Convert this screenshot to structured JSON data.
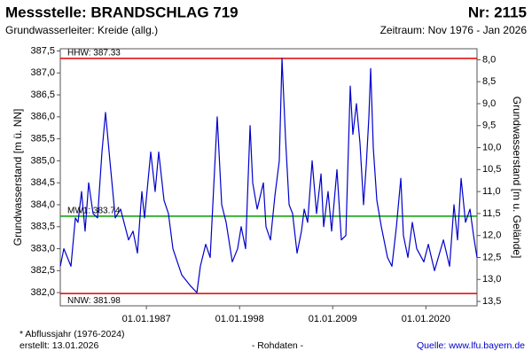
{
  "chart_data": {
    "type": "line",
    "title": "Messstelle: BRANDSCHLAG 719",
    "number": "Nr: 2115",
    "subtitle": "Grundwasserleiter: Kreide (allg.)",
    "period": "Zeitraum: Nov 1976 - Jan 2026",
    "ylabel": "Grundwasserstand [m ü. NN]",
    "y2label": "Grundwasserstand [m u. Gelände]",
    "footnote": "* Abflussjahr (1976-2024)",
    "created": "erstellt:  13.01.2026",
    "rawdata": "- Rohdaten -",
    "source": "Quelle: www.lfu.bayern.de",
    "xlim": [
      1976.83,
      2026.04
    ],
    "xticks": [
      {
        "value": 1987.0,
        "label": "01.01.1987"
      },
      {
        "value": 1998.0,
        "label": "01.01.1998"
      },
      {
        "value": 2009.0,
        "label": "01.01.2009"
      },
      {
        "value": 2020.0,
        "label": "01.01.2020"
      }
    ],
    "ylim": [
      381.7,
      387.55
    ],
    "yticks": [
      {
        "value": 382.0,
        "label": "382,0"
      },
      {
        "value": 382.5,
        "label": "382,5"
      },
      {
        "value": 383.0,
        "label": "383,0"
      },
      {
        "value": 383.5,
        "label": "383,5"
      },
      {
        "value": 384.0,
        "label": "384,0"
      },
      {
        "value": 384.5,
        "label": "384,5"
      },
      {
        "value": 385.0,
        "label": "385,0"
      },
      {
        "value": 385.5,
        "label": "385,5"
      },
      {
        "value": 386.0,
        "label": "386,0"
      },
      {
        "value": 386.5,
        "label": "386,5"
      },
      {
        "value": 387.0,
        "label": "387,0"
      },
      {
        "value": 387.5,
        "label": "387,5"
      }
    ],
    "y2lim": [
      13.6,
      7.75
    ],
    "y2ticks": [
      {
        "value": 8.0,
        "label": "8,0"
      },
      {
        "value": 8.5,
        "label": "8,5"
      },
      {
        "value": 9.0,
        "label": "9,0"
      },
      {
        "value": 9.5,
        "label": "9,5"
      },
      {
        "value": 10.0,
        "label": "10,0"
      },
      {
        "value": 10.5,
        "label": "10,5"
      },
      {
        "value": 11.0,
        "label": "11,0"
      },
      {
        "value": 11.5,
        "label": "11,5"
      },
      {
        "value": 12.0,
        "label": "12,0"
      },
      {
        "value": 12.5,
        "label": "12,5"
      },
      {
        "value": 13.0,
        "label": "13,0"
      },
      {
        "value": 13.5,
        "label": "13,5"
      }
    ],
    "reference_lines": [
      {
        "label": "HHW: 387.33",
        "value": 387.33,
        "color": "#e00000"
      },
      {
        "label": "MW1: 383.74",
        "value": 383.74,
        "color": "#00a000"
      },
      {
        "label": "NNW: 381.98",
        "value": 381.98,
        "color": "#e00000"
      }
    ],
    "series": [
      {
        "color": "#0000cc",
        "x": [
          1976.83,
          1977.25,
          1978.09,
          1978.61,
          1978.92,
          1979.34,
          1979.76,
          1980.18,
          1980.7,
          1981.23,
          1981.75,
          1982.17,
          1982.69,
          1983.32,
          1983.95,
          1984.89,
          1985.42,
          1985.94,
          1986.46,
          1986.78,
          1987.51,
          1988.03,
          1988.45,
          1989.08,
          1989.6,
          1990.13,
          1990.65,
          1991.18,
          1992.22,
          1992.96,
          1993.37,
          1994.0,
          1994.53,
          1995.36,
          1995.89,
          1996.41,
          1997.14,
          1997.77,
          1998.19,
          1998.71,
          1999.24,
          1999.55,
          2000.08,
          2000.81,
          2001.12,
          2001.65,
          2002.17,
          2002.69,
          2003.01,
          2003.43,
          2003.85,
          2004.26,
          2004.79,
          2005.31,
          2005.63,
          2006.04,
          2006.57,
          2007.09,
          2007.62,
          2007.93,
          2008.45,
          2008.87,
          2009.5,
          2010.02,
          2010.55,
          2011.07,
          2011.38,
          2011.8,
          2012.22,
          2012.64,
          2012.96,
          2013.27,
          2013.48,
          2013.79,
          2014.21,
          2014.74,
          2015.47,
          2015.99,
          2016.52,
          2017.04,
          2017.35,
          2017.88,
          2018.4,
          2018.92,
          2019.76,
          2020.29,
          2021.02,
          2022.07,
          2022.8,
          2023.32,
          2023.74,
          2024.16,
          2024.68,
          2025.21,
          2025.63,
          2026.04
        ],
        "values": [
          382.6,
          383.0,
          382.6,
          383.7,
          383.6,
          384.3,
          383.4,
          384.5,
          383.8,
          383.7,
          385.2,
          386.1,
          385.0,
          383.7,
          383.9,
          383.2,
          383.4,
          382.9,
          384.3,
          383.7,
          385.2,
          384.3,
          385.2,
          384.1,
          383.8,
          383.0,
          382.7,
          382.4,
          382.15,
          382.0,
          382.6,
          383.1,
          382.8,
          386.0,
          384.0,
          383.6,
          382.7,
          383.0,
          383.5,
          383.0,
          385.8,
          384.5,
          383.9,
          384.5,
          383.5,
          383.2,
          384.2,
          385.0,
          387.33,
          385.5,
          384.0,
          383.8,
          382.9,
          383.4,
          383.9,
          383.6,
          385.0,
          383.8,
          384.7,
          383.5,
          384.3,
          383.4,
          384.8,
          383.2,
          383.3,
          386.7,
          385.6,
          386.3,
          385.4,
          384.0,
          384.9,
          386.0,
          387.1,
          385.3,
          384.1,
          383.5,
          382.8,
          382.6,
          383.5,
          384.6,
          383.3,
          382.8,
          383.6,
          383.0,
          382.7,
          383.1,
          382.5,
          383.2,
          382.6,
          384.0,
          383.2,
          384.6,
          383.6,
          383.9,
          383.3,
          382.8
        ]
      }
    ]
  }
}
